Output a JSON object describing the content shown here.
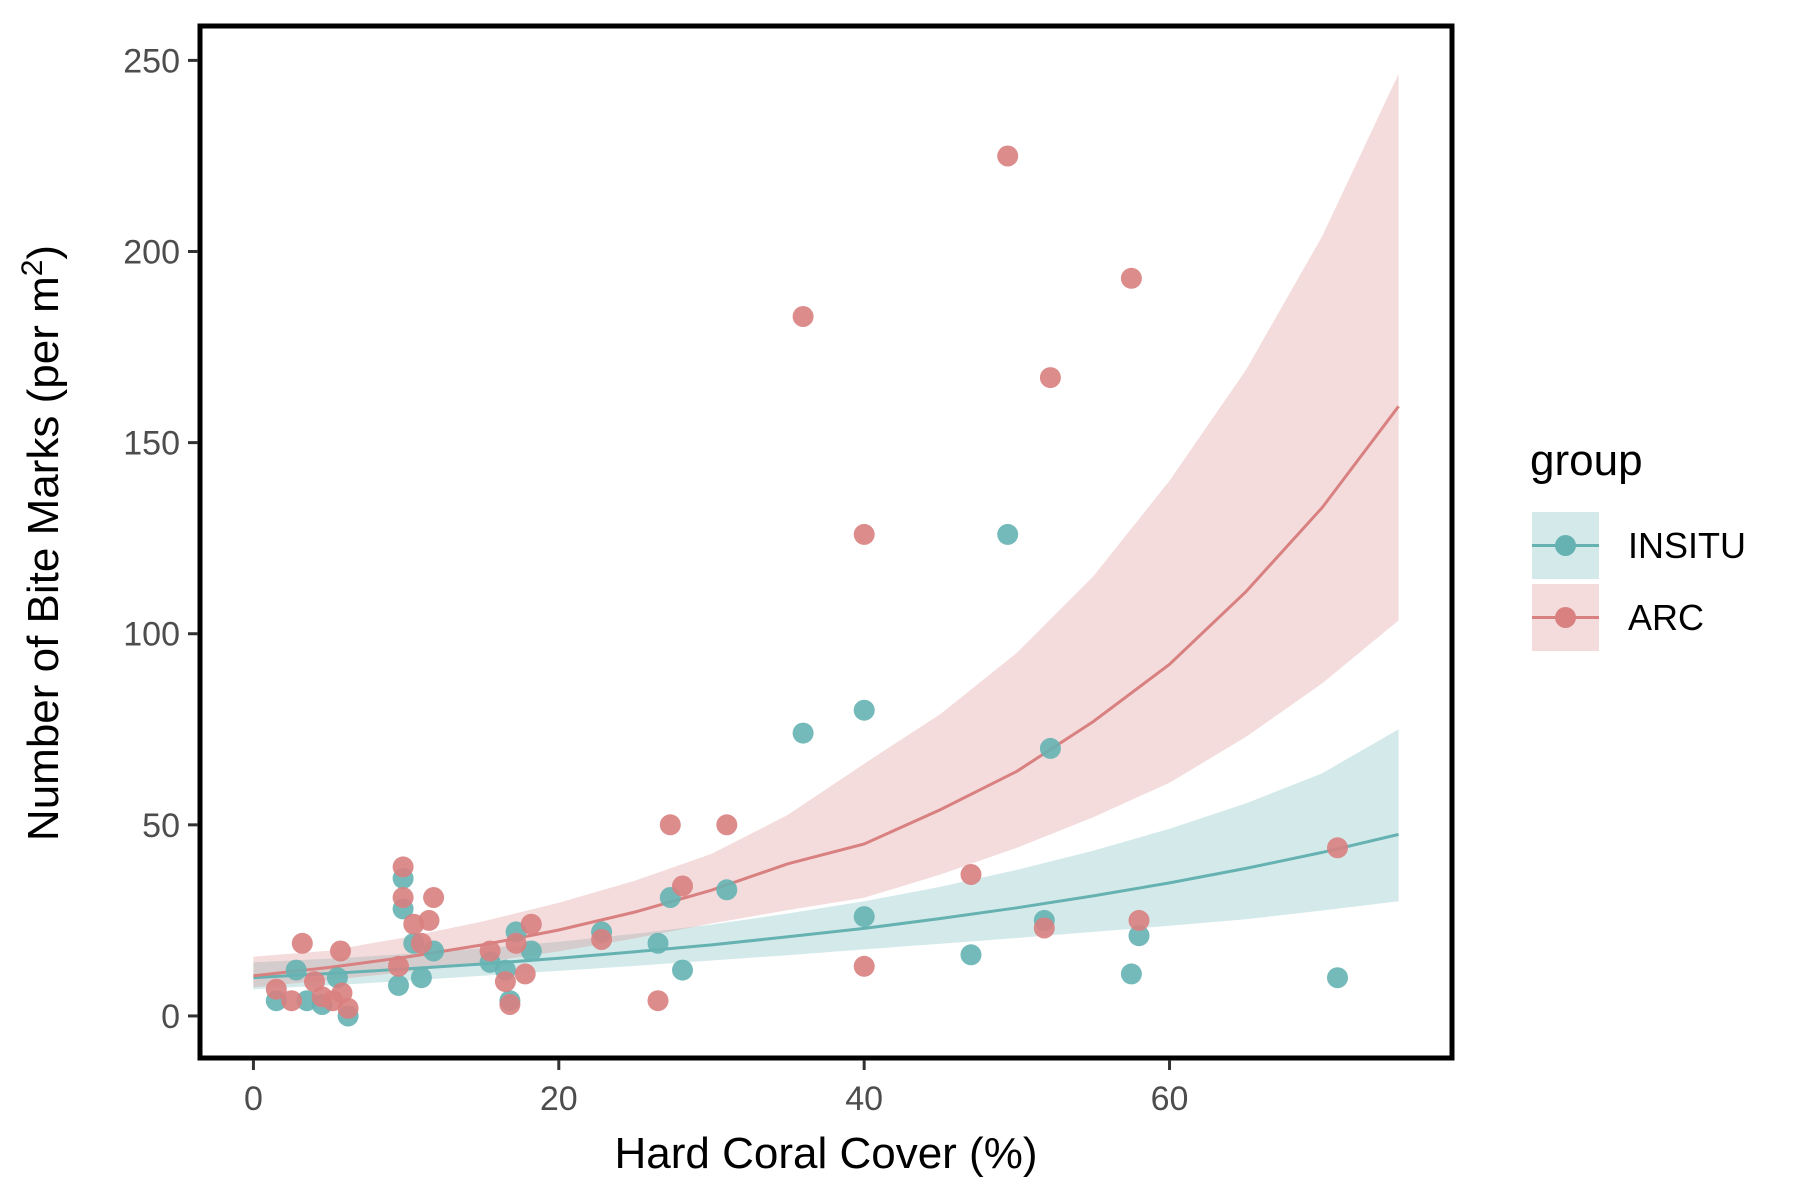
{
  "chart_data": {
    "type": "scatter",
    "title": "",
    "xlabel": "Hard Coral Cover (%)",
    "ylabel": "Number of Bite Marks (per m",
    "ylabel_superscript": "2",
    "ylabel_suffix": ")",
    "xlim": [
      -3.5,
      78.5
    ],
    "ylim": [
      -11,
      259
    ],
    "x_ticks": [
      0,
      20,
      40,
      60
    ],
    "y_ticks": [
      0,
      50,
      100,
      150,
      200,
      250
    ],
    "grid": false,
    "legend": {
      "title": "group",
      "position": "right"
    },
    "series": [
      {
        "name": "INSITU",
        "color": "#66b2b2",
        "points": [
          [
            1.5,
            4
          ],
          [
            2.8,
            12
          ],
          [
            3.5,
            4
          ],
          [
            4.5,
            3
          ],
          [
            5.5,
            10
          ],
          [
            6.2,
            0
          ],
          [
            9.5,
            8
          ],
          [
            9.8,
            36
          ],
          [
            9.8,
            28
          ],
          [
            10.5,
            19
          ],
          [
            11.0,
            10
          ],
          [
            11.8,
            17
          ],
          [
            15.5,
            14
          ],
          [
            16.5,
            12
          ],
          [
            16.8,
            4
          ],
          [
            17.2,
            22
          ],
          [
            18.2,
            17
          ],
          [
            22.8,
            22
          ],
          [
            26.5,
            19
          ],
          [
            27.3,
            31
          ],
          [
            28.1,
            12
          ],
          [
            31.0,
            33
          ],
          [
            36.0,
            74
          ],
          [
            40.0,
            80
          ],
          [
            40.0,
            26
          ],
          [
            47.0,
            16
          ],
          [
            49.4,
            126
          ],
          [
            51.8,
            25
          ],
          [
            52.2,
            70
          ],
          [
            57.5,
            11
          ],
          [
            58.0,
            21
          ],
          [
            71.0,
            10
          ]
        ],
        "fit": {
          "x": [
            0,
            5,
            10,
            15,
            20,
            25,
            30,
            35,
            40,
            45,
            50,
            55,
            60,
            65,
            70,
            75
          ],
          "y": [
            10,
            11.1,
            12.3,
            13.6,
            15.1,
            16.8,
            18.6,
            20.7,
            22.9,
            25.5,
            28.3,
            31.4,
            34.8,
            38.6,
            42.8,
            47.5
          ],
          "lower": [
            7,
            8.0,
            9.2,
            10.5,
            11.8,
            13.1,
            14.5,
            15.9,
            17.4,
            18.9,
            20.4,
            22.0,
            23.6,
            25.3,
            27.6,
            30
          ],
          "upper": [
            14,
            15.0,
            16.2,
            17.7,
            19.4,
            21.5,
            23.9,
            26.8,
            30.0,
            33.8,
            38.2,
            43.2,
            49.0,
            55.6,
            63.5,
            75
          ]
        }
      },
      {
        "name": "ARC",
        "color": "#d98080",
        "points": [
          [
            1.5,
            7
          ],
          [
            2.5,
            4
          ],
          [
            3.2,
            19
          ],
          [
            4.0,
            9
          ],
          [
            4.5,
            5
          ],
          [
            5.2,
            4
          ],
          [
            5.7,
            17
          ],
          [
            5.8,
            6
          ],
          [
            6.2,
            2
          ],
          [
            9.5,
            13
          ],
          [
            9.8,
            39
          ],
          [
            9.8,
            31
          ],
          [
            10.5,
            24
          ],
          [
            11.0,
            19
          ],
          [
            11.5,
            25
          ],
          [
            11.8,
            31
          ],
          [
            15.5,
            17
          ],
          [
            16.5,
            9
          ],
          [
            16.8,
            3
          ],
          [
            17.2,
            19
          ],
          [
            17.8,
            11
          ],
          [
            18.2,
            24
          ],
          [
            22.8,
            20
          ],
          [
            26.5,
            4
          ],
          [
            27.3,
            50
          ],
          [
            28.1,
            34
          ],
          [
            31.0,
            50
          ],
          [
            36.0,
            183
          ],
          [
            40.0,
            126
          ],
          [
            40.0,
            13
          ],
          [
            47.0,
            37
          ],
          [
            49.4,
            225
          ],
          [
            51.8,
            23
          ],
          [
            52.2,
            167
          ],
          [
            57.5,
            193
          ],
          [
            58.0,
            25
          ],
          [
            71.0,
            44
          ]
        ],
        "fit": {
          "x": [
            0,
            5,
            10,
            15,
            20,
            25,
            30,
            35,
            40,
            45,
            50,
            55,
            60,
            65,
            70,
            75
          ],
          "y": [
            10.5,
            12.7,
            15.4,
            18.6,
            22.5,
            27.2,
            32.9,
            39.8,
            45,
            54,
            64,
            77,
            92,
            111,
            133,
            159.5
          ],
          "lower": [
            7.5,
            9.4,
            11.5,
            14.0,
            16.9,
            20.3,
            24.2,
            27.7,
            30.9,
            37,
            44,
            52,
            61,
            73,
            87,
            103.5
          ],
          "upper": [
            15.5,
            17.1,
            20.6,
            24.7,
            29.6,
            35.4,
            42.4,
            52.6,
            66,
            79,
            95,
            115,
            140,
            169,
            204,
            246.5
          ]
        }
      }
    ]
  }
}
